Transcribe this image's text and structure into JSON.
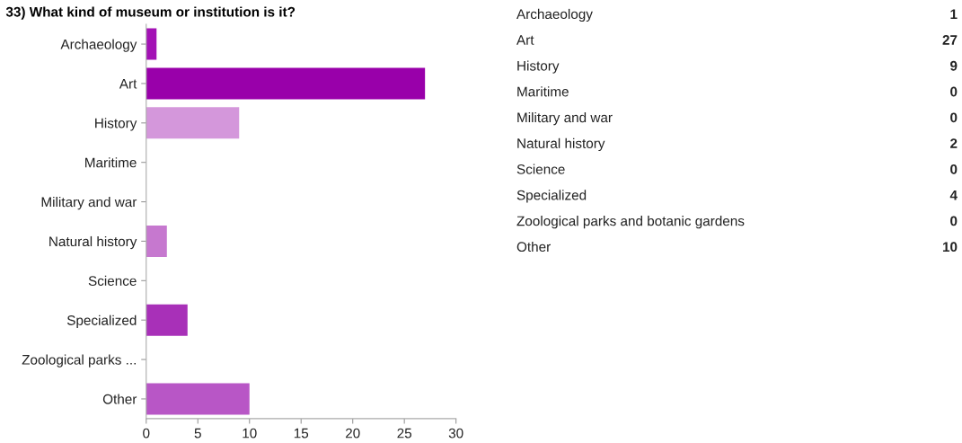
{
  "chart_data": [
    {
      "type": "bar",
      "orientation": "horizontal",
      "title": "33) What kind of museum or institution is it?",
      "categories": [
        "Archaeology",
        "Art",
        "History",
        "Maritime",
        "Military and war",
        "Natural history",
        "Science",
        "Specialized",
        "Zoological parks ...",
        "Other"
      ],
      "values": [
        1,
        27,
        9,
        0,
        0,
        2,
        0,
        4,
        0,
        10
      ],
      "colors": [
        "#a312b5",
        "#9900aa",
        "#d497db",
        null,
        null,
        "#c678cf",
        null,
        "#a830b8",
        null,
        "#b856c6"
      ],
      "xlim": [
        0,
        30
      ],
      "xticks": [
        0,
        5,
        10,
        15,
        20,
        25,
        30
      ],
      "grid": false
    },
    {
      "type": "other",
      "categories": [
        "Archaeology",
        "Art",
        "History",
        "Maritime",
        "Military and war",
        "Natural history",
        "Science",
        "Specialized",
        "Zoological parks and botanic gardens",
        "Other"
      ],
      "values": [
        1,
        27,
        9,
        0,
        0,
        2,
        0,
        4,
        0,
        10
      ],
      "data_labels": true
    }
  ]
}
